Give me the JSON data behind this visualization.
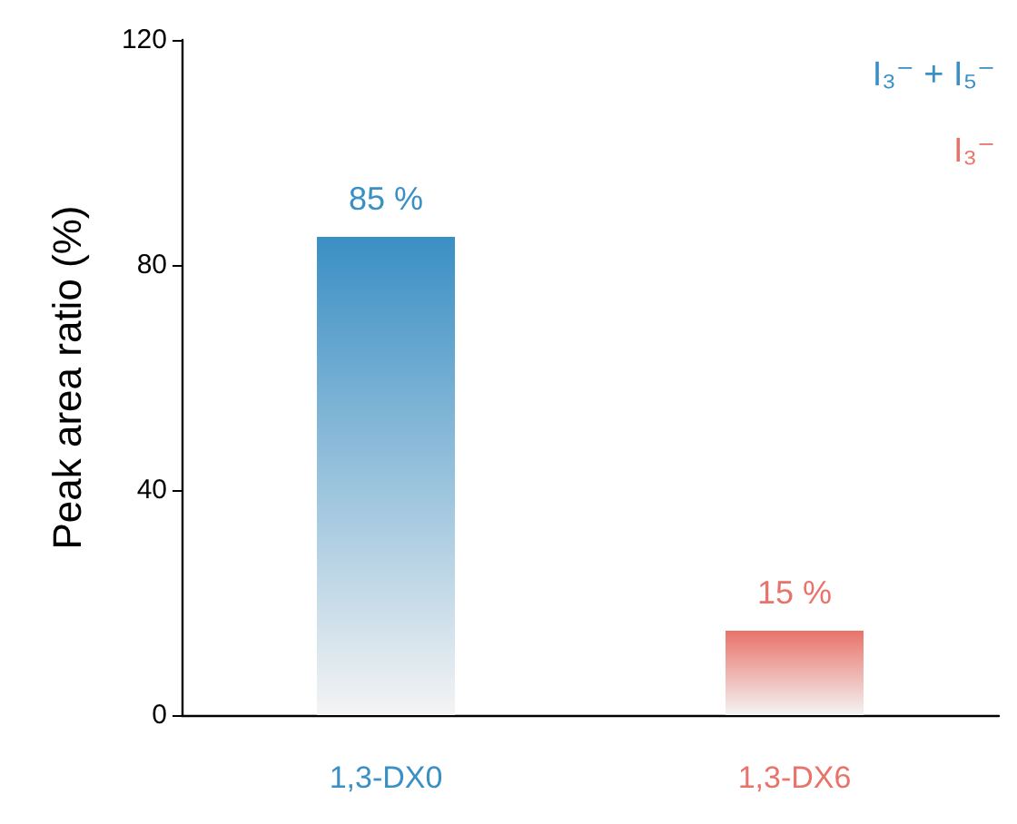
{
  "chart_data": {
    "type": "bar",
    "ylabel": "Peak area ratio (%)",
    "categories": [
      "1,3-DX0",
      "1,3-DX6"
    ],
    "values": [
      85,
      15
    ],
    "colors": [
      "#3a8fc4",
      "#e8736a"
    ],
    "value_labels": [
      "85 %",
      "15 %"
    ],
    "ylim": [
      0,
      120
    ],
    "yticks": [
      0,
      40,
      80,
      120
    ],
    "annotations": [
      "I₃⁻ + I₅⁻",
      "I₃⁻"
    ]
  }
}
